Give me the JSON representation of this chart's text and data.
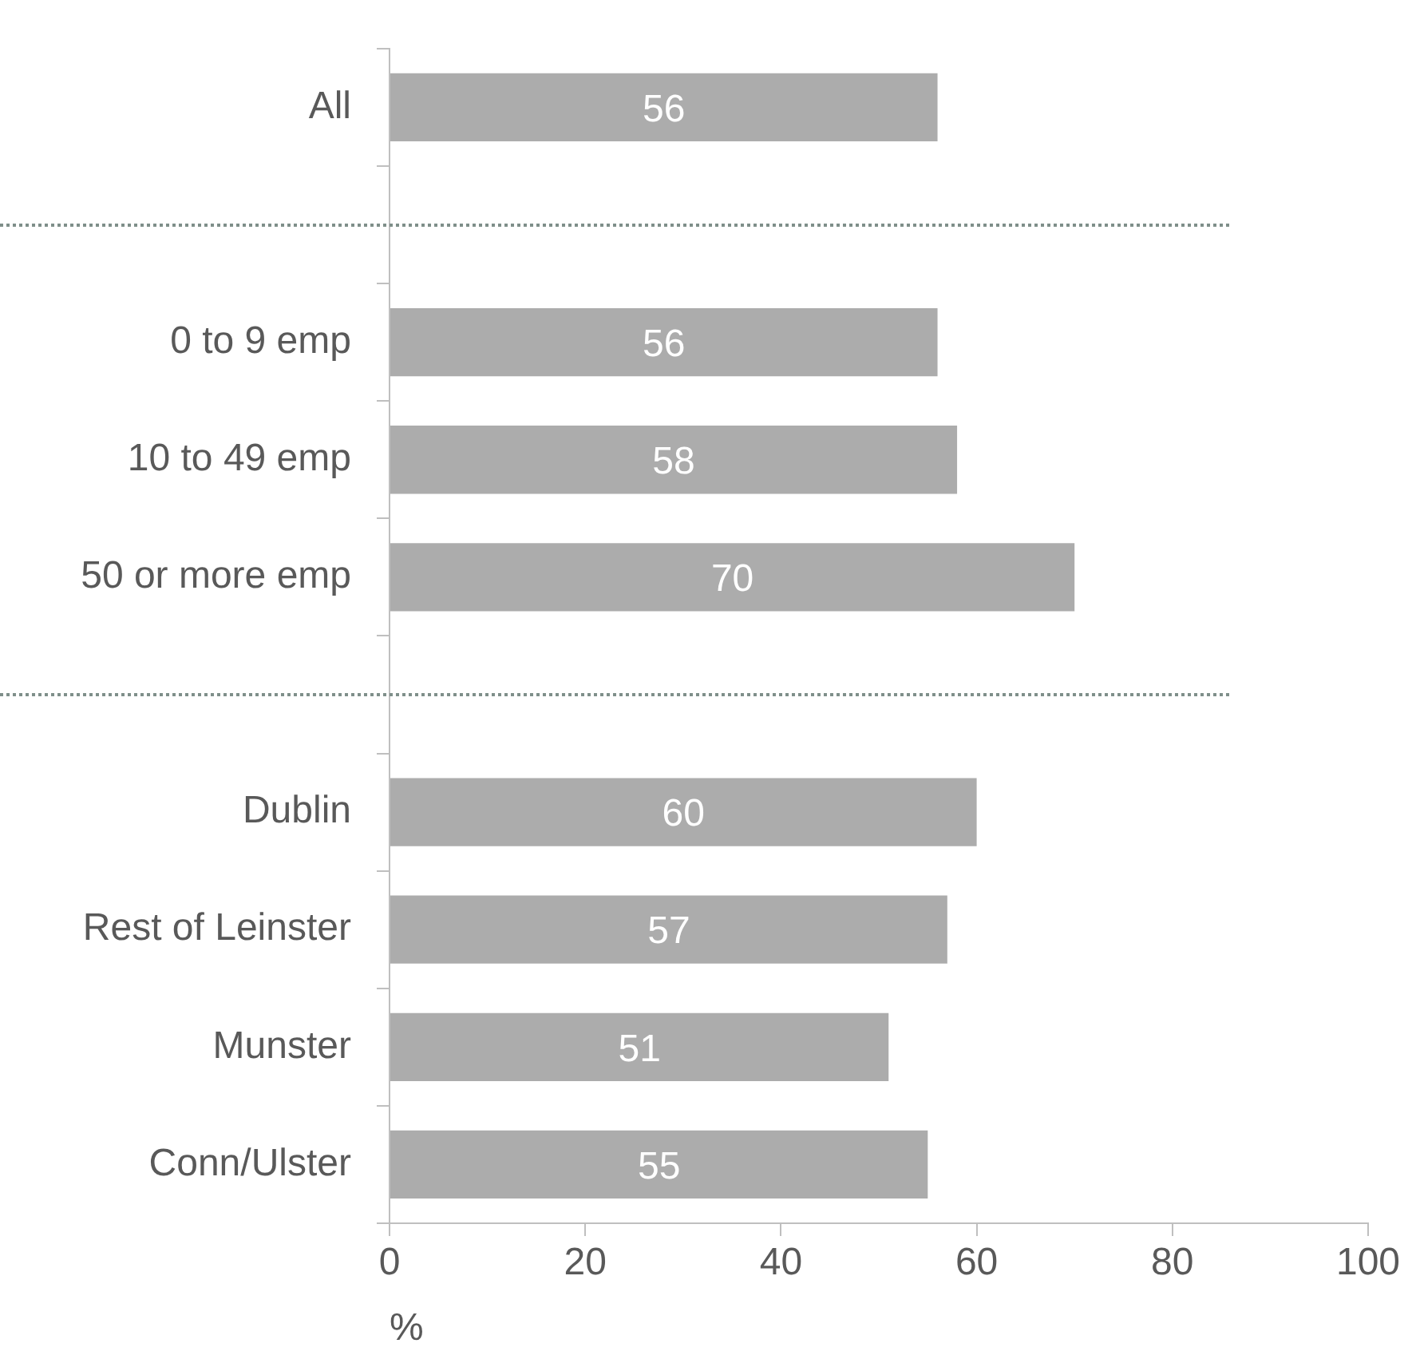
{
  "chart_data": {
    "type": "bar",
    "orientation": "horizontal",
    "categories": [
      "All",
      null,
      "0 to 9 emp",
      "10 to 49 emp",
      "50 or more emp",
      null,
      "Dublin",
      "Rest of Leinster",
      "Munster",
      "Conn/Ulster"
    ],
    "values": [
      56,
      null,
      56,
      58,
      70,
      null,
      60,
      57,
      51,
      55
    ],
    "color": "#acacac",
    "xlabel": "%",
    "xlim": [
      0,
      100
    ],
    "xticks": [
      0,
      20,
      40,
      60,
      80,
      100
    ],
    "grid": false,
    "legend": false,
    "data_labels": true
  }
}
